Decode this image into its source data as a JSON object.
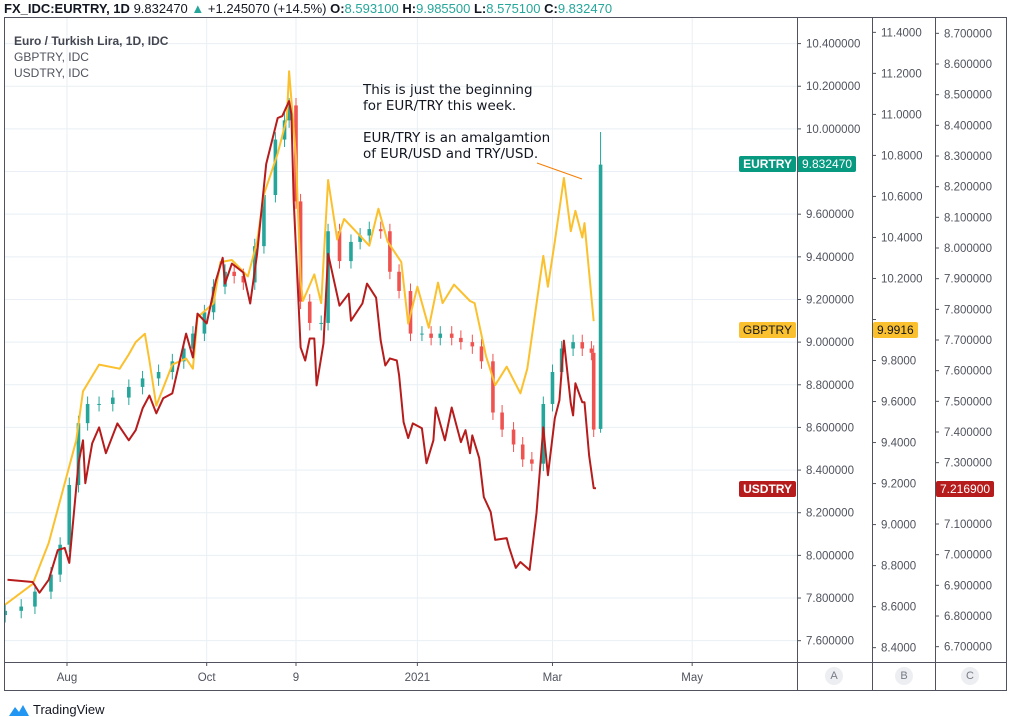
{
  "header": {
    "symbol": "FX_IDC:EURTRY, 1D",
    "last": "9.832470",
    "change": "+1.245070 (+14.5%)",
    "o_label": "O:",
    "o": "8.593100",
    "h_label": "H:",
    "h": "9.985500",
    "l_label": "L:",
    "l": "8.575100",
    "c_label": "C:",
    "c": "9.832470"
  },
  "legend": [
    "Euro / Turkish Lira, 1D, IDC",
    "GBPTRY, IDC",
    "USDTRY, IDC"
  ],
  "annotation": [
    "This is just the beginning",
    "for EUR/TRY this week.",
    "",
    "EUR/TRY is an amalgamtion",
    "of EUR/USD and TRY/USD."
  ],
  "tags": {
    "eurtry": {
      "name": "EURTRY",
      "value": "9.832470",
      "color": "#089981"
    },
    "gbptry": {
      "name": "GBPTRY",
      "value": "9.9916",
      "color": "#fbc02d"
    },
    "usdtry": {
      "name": "USDTRY",
      "value": "7.216900",
      "color": "#b71c1c"
    }
  },
  "scale_buttons": [
    "A",
    "B",
    "C"
  ],
  "branding": "TradingView",
  "chart_data": {
    "type": "line",
    "x_ticks": [
      {
        "label": "Aug",
        "date": "2020-08-01"
      },
      {
        "label": "Oct",
        "date": "2020-10-01"
      },
      {
        "label": "9",
        "date": "2020-11-09"
      },
      {
        "label": "2021",
        "date": "2021-01-01"
      },
      {
        "label": "Mar",
        "date": "2021-03-01"
      },
      {
        "label": "May",
        "date": "2021-05-01"
      }
    ],
    "axes": {
      "A": {
        "series": "EURTRY",
        "range": [
          7.5,
          10.52
        ],
        "ticks_from": 7.6,
        "ticks_to": 10.4,
        "step": 0.2,
        "decimals": 6
      },
      "B": {
        "series": "GBPTRY",
        "range": [
          8.33,
          11.47
        ],
        "ticks_from": 8.4,
        "ticks_to": 11.4,
        "step": 0.2,
        "decimals": 4
      },
      "C": {
        "series": "USDTRY",
        "range": [
          6.65,
          8.75
        ],
        "ticks_from": 6.7,
        "ticks_to": 8.7,
        "step": 0.1,
        "decimals": 6
      }
    },
    "grid": true,
    "candle_colors": {
      "up": "#26a69a",
      "down": "#ef5350"
    },
    "eurtry_last_candle": {
      "date": "2021-03-22",
      "open": 8.5931,
      "high": 9.9855,
      "low": 8.5751,
      "close": 9.83247
    },
    "series": [
      {
        "name": "EURTRY",
        "style": "candles",
        "axis": "A",
        "color": "#26a69a",
        "points": [
          [
            "2020-07-05",
            7.74
          ],
          [
            "2020-07-12",
            7.76
          ],
          [
            "2020-07-18",
            7.83
          ],
          [
            "2020-07-25",
            7.91
          ],
          [
            "2020-07-29",
            8.05
          ],
          [
            "2020-08-02",
            8.33
          ],
          [
            "2020-08-06",
            8.62
          ],
          [
            "2020-08-10",
            8.71
          ],
          [
            "2020-08-15",
            8.71
          ],
          [
            "2020-08-21",
            8.74
          ],
          [
            "2020-08-28",
            8.79
          ],
          [
            "2020-09-03",
            8.83
          ],
          [
            "2020-09-10",
            8.86
          ],
          [
            "2020-09-16",
            8.91
          ],
          [
            "2020-09-21",
            8.97
          ],
          [
            "2020-09-25",
            9.04
          ],
          [
            "2020-09-30",
            9.14
          ],
          [
            "2020-10-04",
            9.26
          ],
          [
            "2020-10-09",
            9.33
          ],
          [
            "2020-10-13",
            9.31
          ],
          [
            "2020-10-17",
            9.28
          ],
          [
            "2020-10-22",
            9.45
          ],
          [
            "2020-10-26",
            9.69
          ],
          [
            "2020-10-31",
            9.95
          ],
          [
            "2020-11-04",
            10.04
          ],
          [
            "2020-11-06",
            10.11
          ],
          [
            "2020-11-09",
            9.66
          ],
          [
            "2020-11-11",
            9.19
          ],
          [
            "2020-11-15",
            9.09
          ],
          [
            "2020-11-20",
            9.09
          ],
          [
            "2020-11-23",
            9.52
          ],
          [
            "2020-11-28",
            9.38
          ],
          [
            "2020-12-03",
            9.47
          ],
          [
            "2020-12-07",
            9.5
          ],
          [
            "2020-12-11",
            9.53
          ],
          [
            "2020-12-16",
            9.52
          ],
          [
            "2020-12-20",
            9.33
          ],
          [
            "2020-12-24",
            9.24
          ],
          [
            "2020-12-29",
            9.04
          ],
          [
            "2021-01-03",
            9.04
          ],
          [
            "2021-01-07",
            9.02
          ],
          [
            "2021-01-11",
            9.04
          ],
          [
            "2021-01-16",
            9.02
          ],
          [
            "2021-01-20",
            9.0
          ],
          [
            "2021-01-25",
            8.98
          ],
          [
            "2021-01-29",
            8.91
          ],
          [
            "2021-02-03",
            8.67
          ],
          [
            "2021-02-07",
            8.59
          ],
          [
            "2021-02-12",
            8.52
          ],
          [
            "2021-02-16",
            8.45
          ],
          [
            "2021-02-20",
            8.43
          ],
          [
            "2021-02-25",
            8.71
          ],
          [
            "2021-03-01",
            8.86
          ],
          [
            "2021-03-05",
            8.97
          ],
          [
            "2021-03-10",
            9.0
          ],
          [
            "2021-03-14",
            8.97
          ],
          [
            "2021-03-18",
            8.95
          ],
          [
            "2021-03-19",
            8.59
          ]
        ]
      },
      {
        "name": "GBPTRY",
        "style": "line",
        "axis": "B",
        "color": "#fbc02d",
        "points": [
          [
            "2020-07-05",
            8.61
          ],
          [
            "2020-07-17",
            8.71
          ],
          [
            "2020-07-24",
            8.91
          ],
          [
            "2020-08-05",
            9.41
          ],
          [
            "2020-08-08",
            9.65
          ],
          [
            "2020-08-15",
            9.78
          ],
          [
            "2020-08-24",
            9.76
          ],
          [
            "2020-08-28",
            9.83
          ],
          [
            "2020-08-31",
            9.89
          ],
          [
            "2020-09-04",
            9.93
          ],
          [
            "2020-09-06",
            9.8
          ],
          [
            "2020-09-09",
            9.58
          ],
          [
            "2020-09-16",
            9.78
          ],
          [
            "2020-09-22",
            9.81
          ],
          [
            "2020-09-25",
            9.76
          ],
          [
            "2020-09-27",
            10.01
          ],
          [
            "2020-10-04",
            10.08
          ],
          [
            "2020-10-07",
            10.28
          ],
          [
            "2020-10-12",
            10.29
          ],
          [
            "2020-10-19",
            10.21
          ],
          [
            "2020-10-23",
            10.38
          ],
          [
            "2020-10-26",
            10.61
          ],
          [
            "2020-11-01",
            10.81
          ],
          [
            "2020-11-05",
            10.98
          ],
          [
            "2020-11-06",
            11.21
          ],
          [
            "2020-11-09",
            10.79
          ],
          [
            "2020-11-11",
            10.19
          ],
          [
            "2020-11-12",
            10.09
          ],
          [
            "2020-11-17",
            10.22
          ],
          [
            "2020-11-20",
            10.08
          ],
          [
            "2020-11-23",
            10.68
          ],
          [
            "2020-11-27",
            10.39
          ],
          [
            "2020-11-30",
            10.49
          ],
          [
            "2020-12-06",
            10.42
          ],
          [
            "2020-12-11",
            10.36
          ],
          [
            "2020-12-15",
            10.54
          ],
          [
            "2020-12-19",
            10.38
          ],
          [
            "2020-12-25",
            10.28
          ],
          [
            "2020-12-28",
            9.98
          ],
          [
            "2021-01-01",
            10.16
          ],
          [
            "2021-01-06",
            9.96
          ],
          [
            "2021-01-10",
            10.18
          ],
          [
            "2021-01-12",
            10.08
          ],
          [
            "2021-01-17",
            10.17
          ],
          [
            "2021-01-24",
            10.09
          ],
          [
            "2021-01-26",
            10.08
          ],
          [
            "2021-01-31",
            9.82
          ],
          [
            "2021-02-04",
            9.68
          ],
          [
            "2021-02-09",
            9.77
          ],
          [
            "2021-02-15",
            9.64
          ],
          [
            "2021-02-18",
            9.76
          ],
          [
            "2021-02-25",
            10.31
          ],
          [
            "2021-02-27",
            10.16
          ],
          [
            "2021-03-02",
            10.38
          ],
          [
            "2021-03-06",
            10.69
          ],
          [
            "2021-03-09",
            10.43
          ],
          [
            "2021-03-11",
            10.53
          ],
          [
            "2021-03-14",
            10.4
          ],
          [
            "2021-03-15",
            10.47
          ],
          [
            "2021-03-19",
            9.9916
          ]
        ]
      },
      {
        "name": "USDTRY",
        "style": "line",
        "axis": "C",
        "color": "#b71c1c",
        "points": [
          [
            "2020-07-06",
            6.918
          ],
          [
            "2020-07-17",
            6.911
          ],
          [
            "2020-07-20",
            6.876
          ],
          [
            "2020-07-24",
            6.918
          ],
          [
            "2020-07-28",
            7.015
          ],
          [
            "2020-07-31",
            7.022
          ],
          [
            "2020-08-02",
            6.973
          ],
          [
            "2020-08-04",
            7.136
          ],
          [
            "2020-08-06",
            7.298
          ],
          [
            "2020-08-08",
            7.373
          ],
          [
            "2020-08-09",
            7.233
          ],
          [
            "2020-08-12",
            7.363
          ],
          [
            "2020-08-15",
            7.415
          ],
          [
            "2020-08-18",
            7.331
          ],
          [
            "2020-08-23",
            7.428
          ],
          [
            "2020-08-28",
            7.373
          ],
          [
            "2020-08-31",
            7.406
          ],
          [
            "2020-09-03",
            7.477
          ],
          [
            "2020-09-06",
            7.519
          ],
          [
            "2020-09-09",
            7.461
          ],
          [
            "2020-09-12",
            7.51
          ],
          [
            "2020-09-16",
            7.526
          ],
          [
            "2020-09-18",
            7.591
          ],
          [
            "2020-09-22",
            7.721
          ],
          [
            "2020-09-25",
            7.643
          ],
          [
            "2020-09-27",
            7.786
          ],
          [
            "2020-10-01",
            7.754
          ],
          [
            "2020-10-05",
            7.893
          ],
          [
            "2020-10-08",
            7.968
          ],
          [
            "2020-10-09",
            7.884
          ],
          [
            "2020-10-12",
            7.949
          ],
          [
            "2020-10-17",
            7.92
          ],
          [
            "2020-10-20",
            7.819
          ],
          [
            "2020-10-23",
            7.981
          ],
          [
            "2020-10-27",
            8.274
          ],
          [
            "2020-11-01",
            8.424
          ],
          [
            "2020-11-03",
            8.43
          ],
          [
            "2020-11-06",
            8.479
          ],
          [
            "2020-11-07",
            8.437
          ],
          [
            "2020-11-08",
            8.154
          ],
          [
            "2020-11-10",
            7.838
          ],
          [
            "2020-11-11",
            7.676
          ],
          [
            "2020-11-13",
            7.633
          ],
          [
            "2020-11-15",
            7.705
          ],
          [
            "2020-11-17",
            7.705
          ],
          [
            "2020-11-18",
            7.552
          ],
          [
            "2020-11-21",
            7.689
          ],
          [
            "2020-11-23",
            7.981
          ],
          [
            "2020-11-28",
            7.812
          ],
          [
            "2020-12-02",
            7.851
          ],
          [
            "2020-12-03",
            7.763
          ],
          [
            "2020-12-08",
            7.819
          ],
          [
            "2020-12-10",
            7.884
          ],
          [
            "2020-12-14",
            7.838
          ],
          [
            "2020-12-16",
            7.698
          ],
          [
            "2020-12-18",
            7.617
          ],
          [
            "2020-12-20",
            7.64
          ],
          [
            "2020-12-23",
            7.633
          ],
          [
            "2020-12-24",
            7.585
          ],
          [
            "2020-12-26",
            7.432
          ],
          [
            "2020-12-28",
            7.38
          ],
          [
            "2020-12-30",
            7.428
          ],
          [
            "2021-01-03",
            7.412
          ],
          [
            "2021-01-05",
            7.298
          ],
          [
            "2021-01-08",
            7.373
          ],
          [
            "2021-01-09",
            7.48
          ],
          [
            "2021-01-13",
            7.373
          ],
          [
            "2021-01-16",
            7.48
          ],
          [
            "2021-01-20",
            7.367
          ],
          [
            "2021-01-22",
            7.406
          ],
          [
            "2021-01-24",
            7.331
          ],
          [
            "2021-01-25",
            7.389
          ],
          [
            "2021-01-28",
            7.315
          ],
          [
            "2021-01-30",
            7.188
          ],
          [
            "2021-02-02",
            7.139
          ],
          [
            "2021-02-04",
            7.048
          ],
          [
            "2021-02-09",
            7.054
          ],
          [
            "2021-02-10",
            7.025
          ],
          [
            "2021-02-13",
            6.957
          ],
          [
            "2021-02-15",
            6.976
          ],
          [
            "2021-02-19",
            6.95
          ],
          [
            "2021-02-22",
            7.136
          ],
          [
            "2021-02-25",
            7.415
          ],
          [
            "2021-02-27",
            7.259
          ],
          [
            "2021-03-02",
            7.445
          ],
          [
            "2021-03-04",
            7.503
          ],
          [
            "2021-03-06",
            7.698
          ],
          [
            "2021-03-09",
            7.493
          ],
          [
            "2021-03-10",
            7.454
          ],
          [
            "2021-03-11",
            7.559
          ],
          [
            "2021-03-14",
            7.497
          ],
          [
            "2021-03-15",
            7.497
          ],
          [
            "2021-03-17",
            7.324
          ],
          [
            "2021-03-19",
            7.217
          ],
          [
            "2021-03-20",
            7.2169
          ]
        ]
      }
    ]
  }
}
